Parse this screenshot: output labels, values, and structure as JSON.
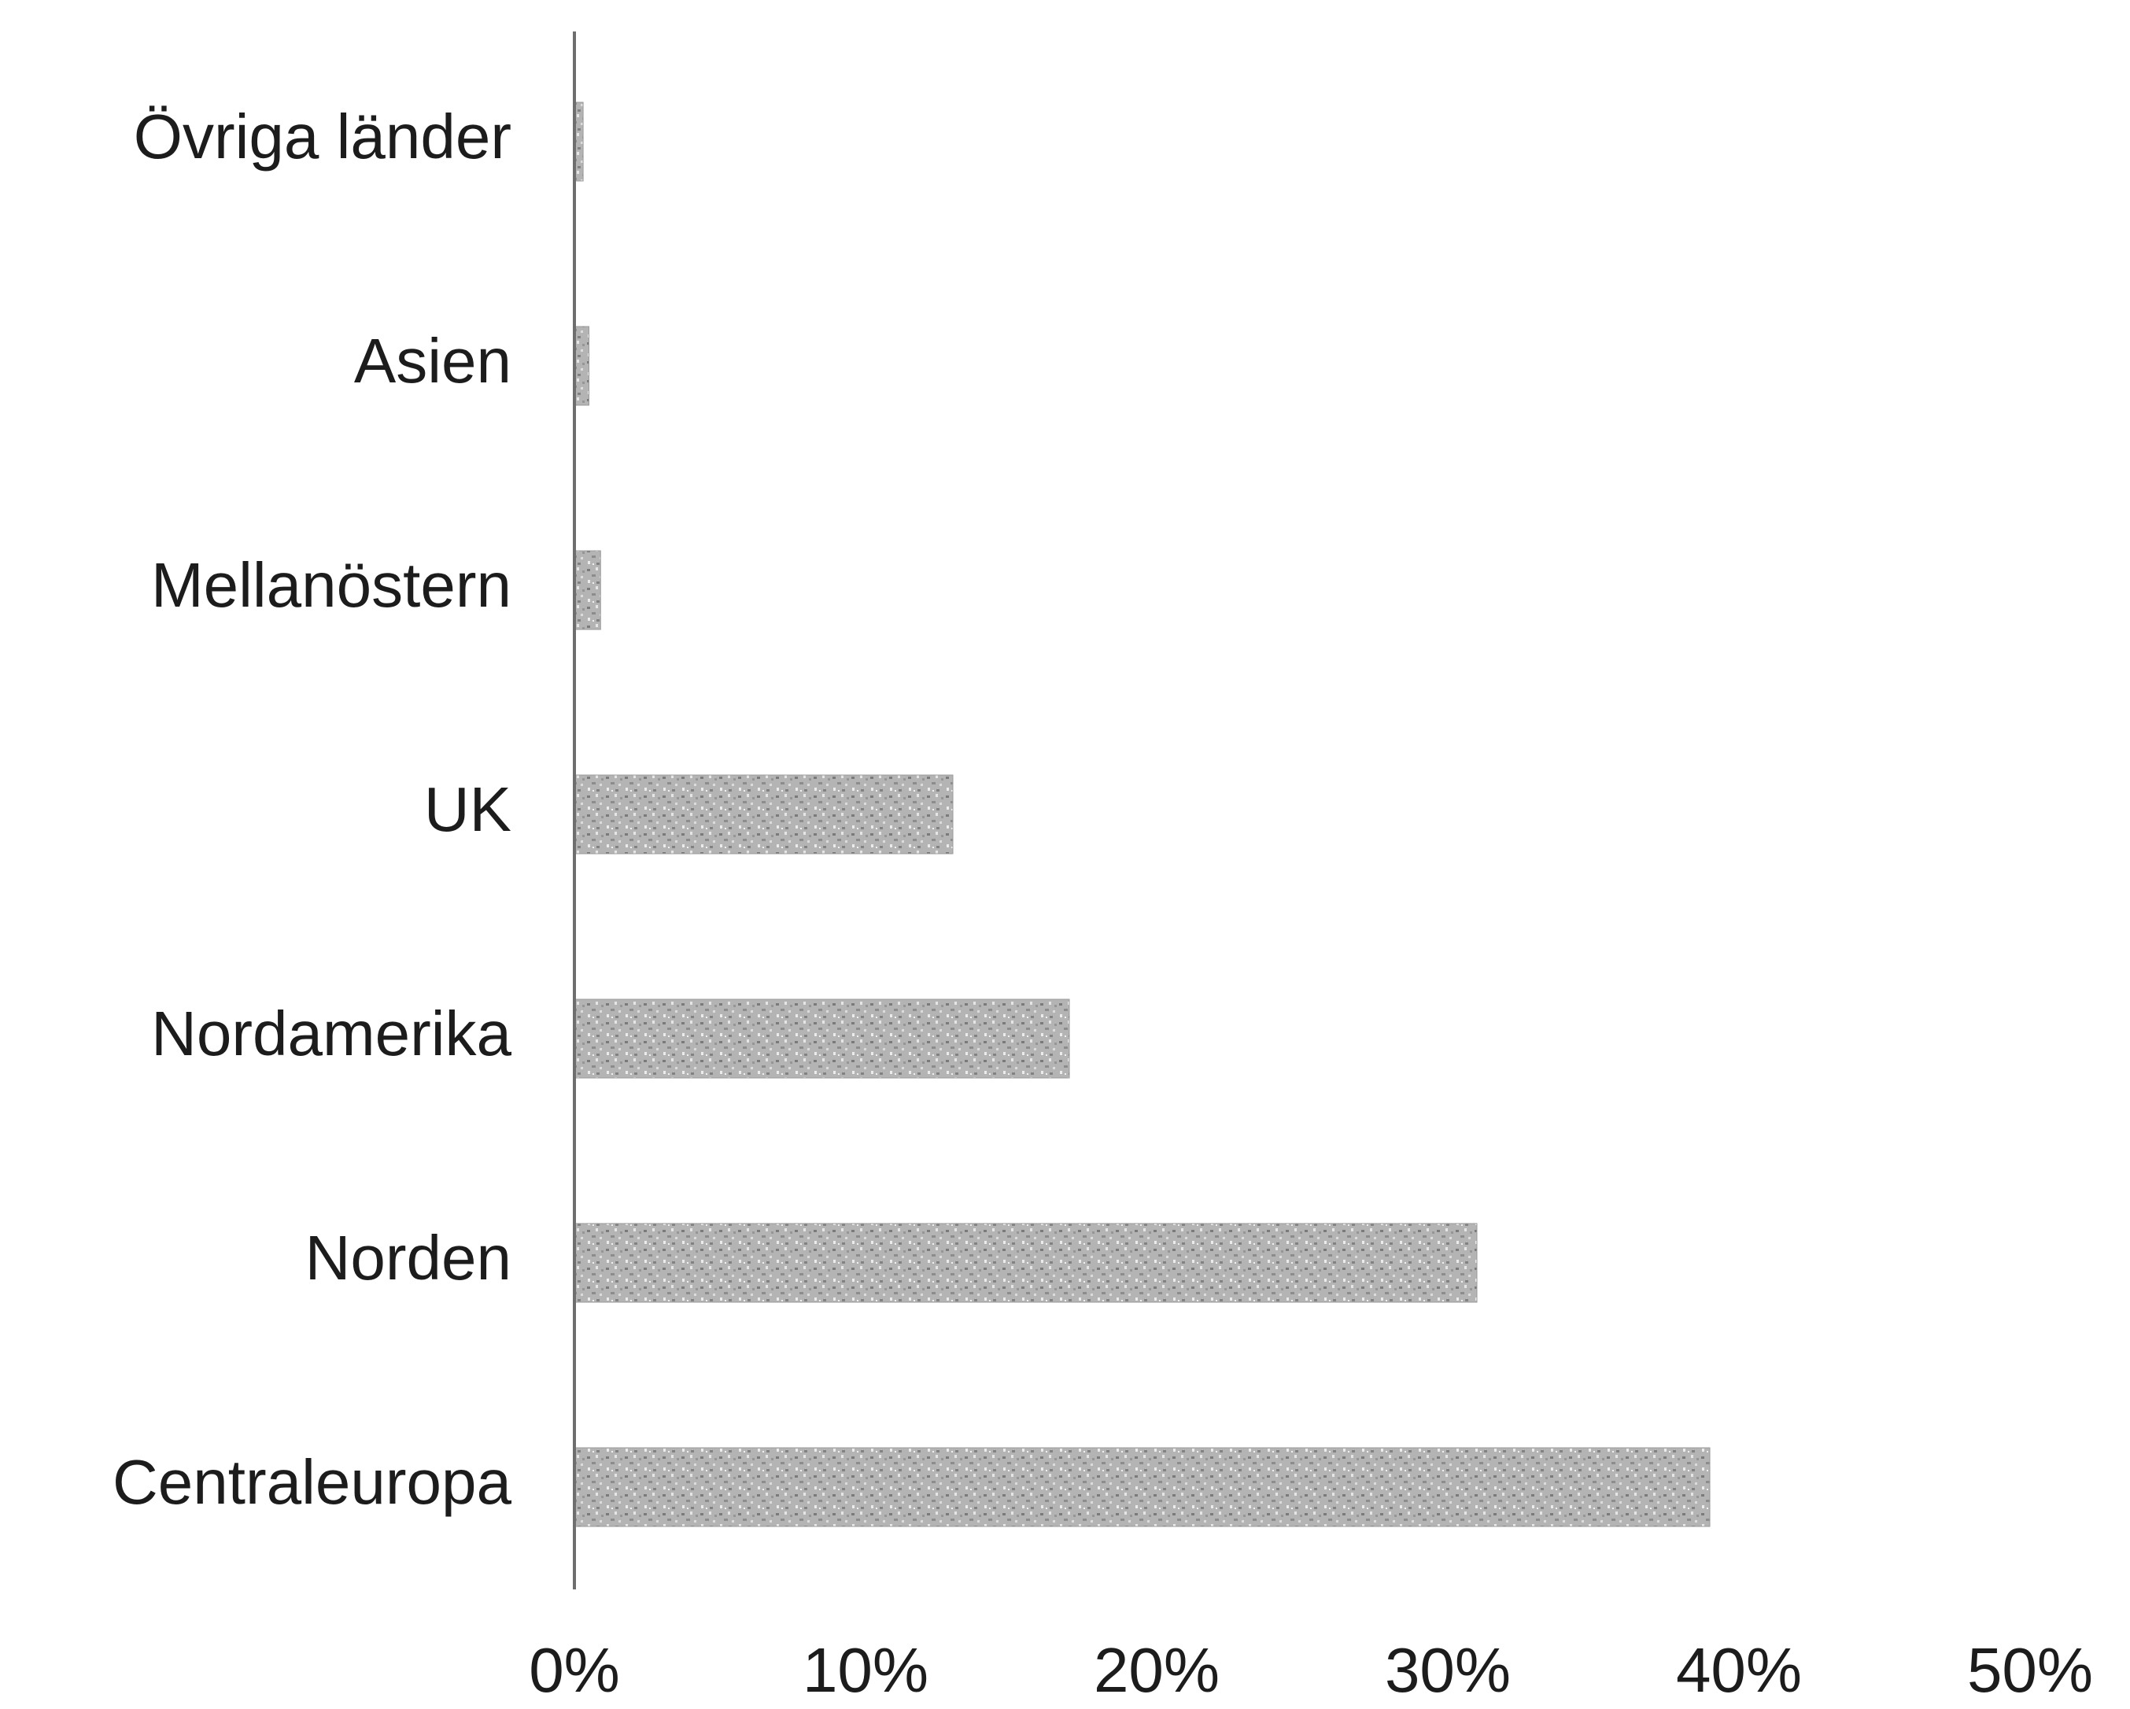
{
  "chart_data": {
    "type": "bar",
    "orientation": "horizontal",
    "categories": [
      "Övriga länder",
      "Asien",
      "Mellanöstern",
      "UK",
      "Nordamerika",
      "Norden",
      "Centraleuropa"
    ],
    "values": [
      0.3,
      0.5,
      0.9,
      13,
      17,
      31,
      39
    ],
    "xlim": [
      0,
      50
    ],
    "xticks": [
      "0%",
      "10%",
      "20%",
      "30%",
      "40%",
      "50%"
    ],
    "title": "",
    "xlabel": "",
    "ylabel": "",
    "grid": false,
    "legend": "none",
    "bar_color": "#a9a9a9",
    "axis_color": "#6e6e6e"
  }
}
